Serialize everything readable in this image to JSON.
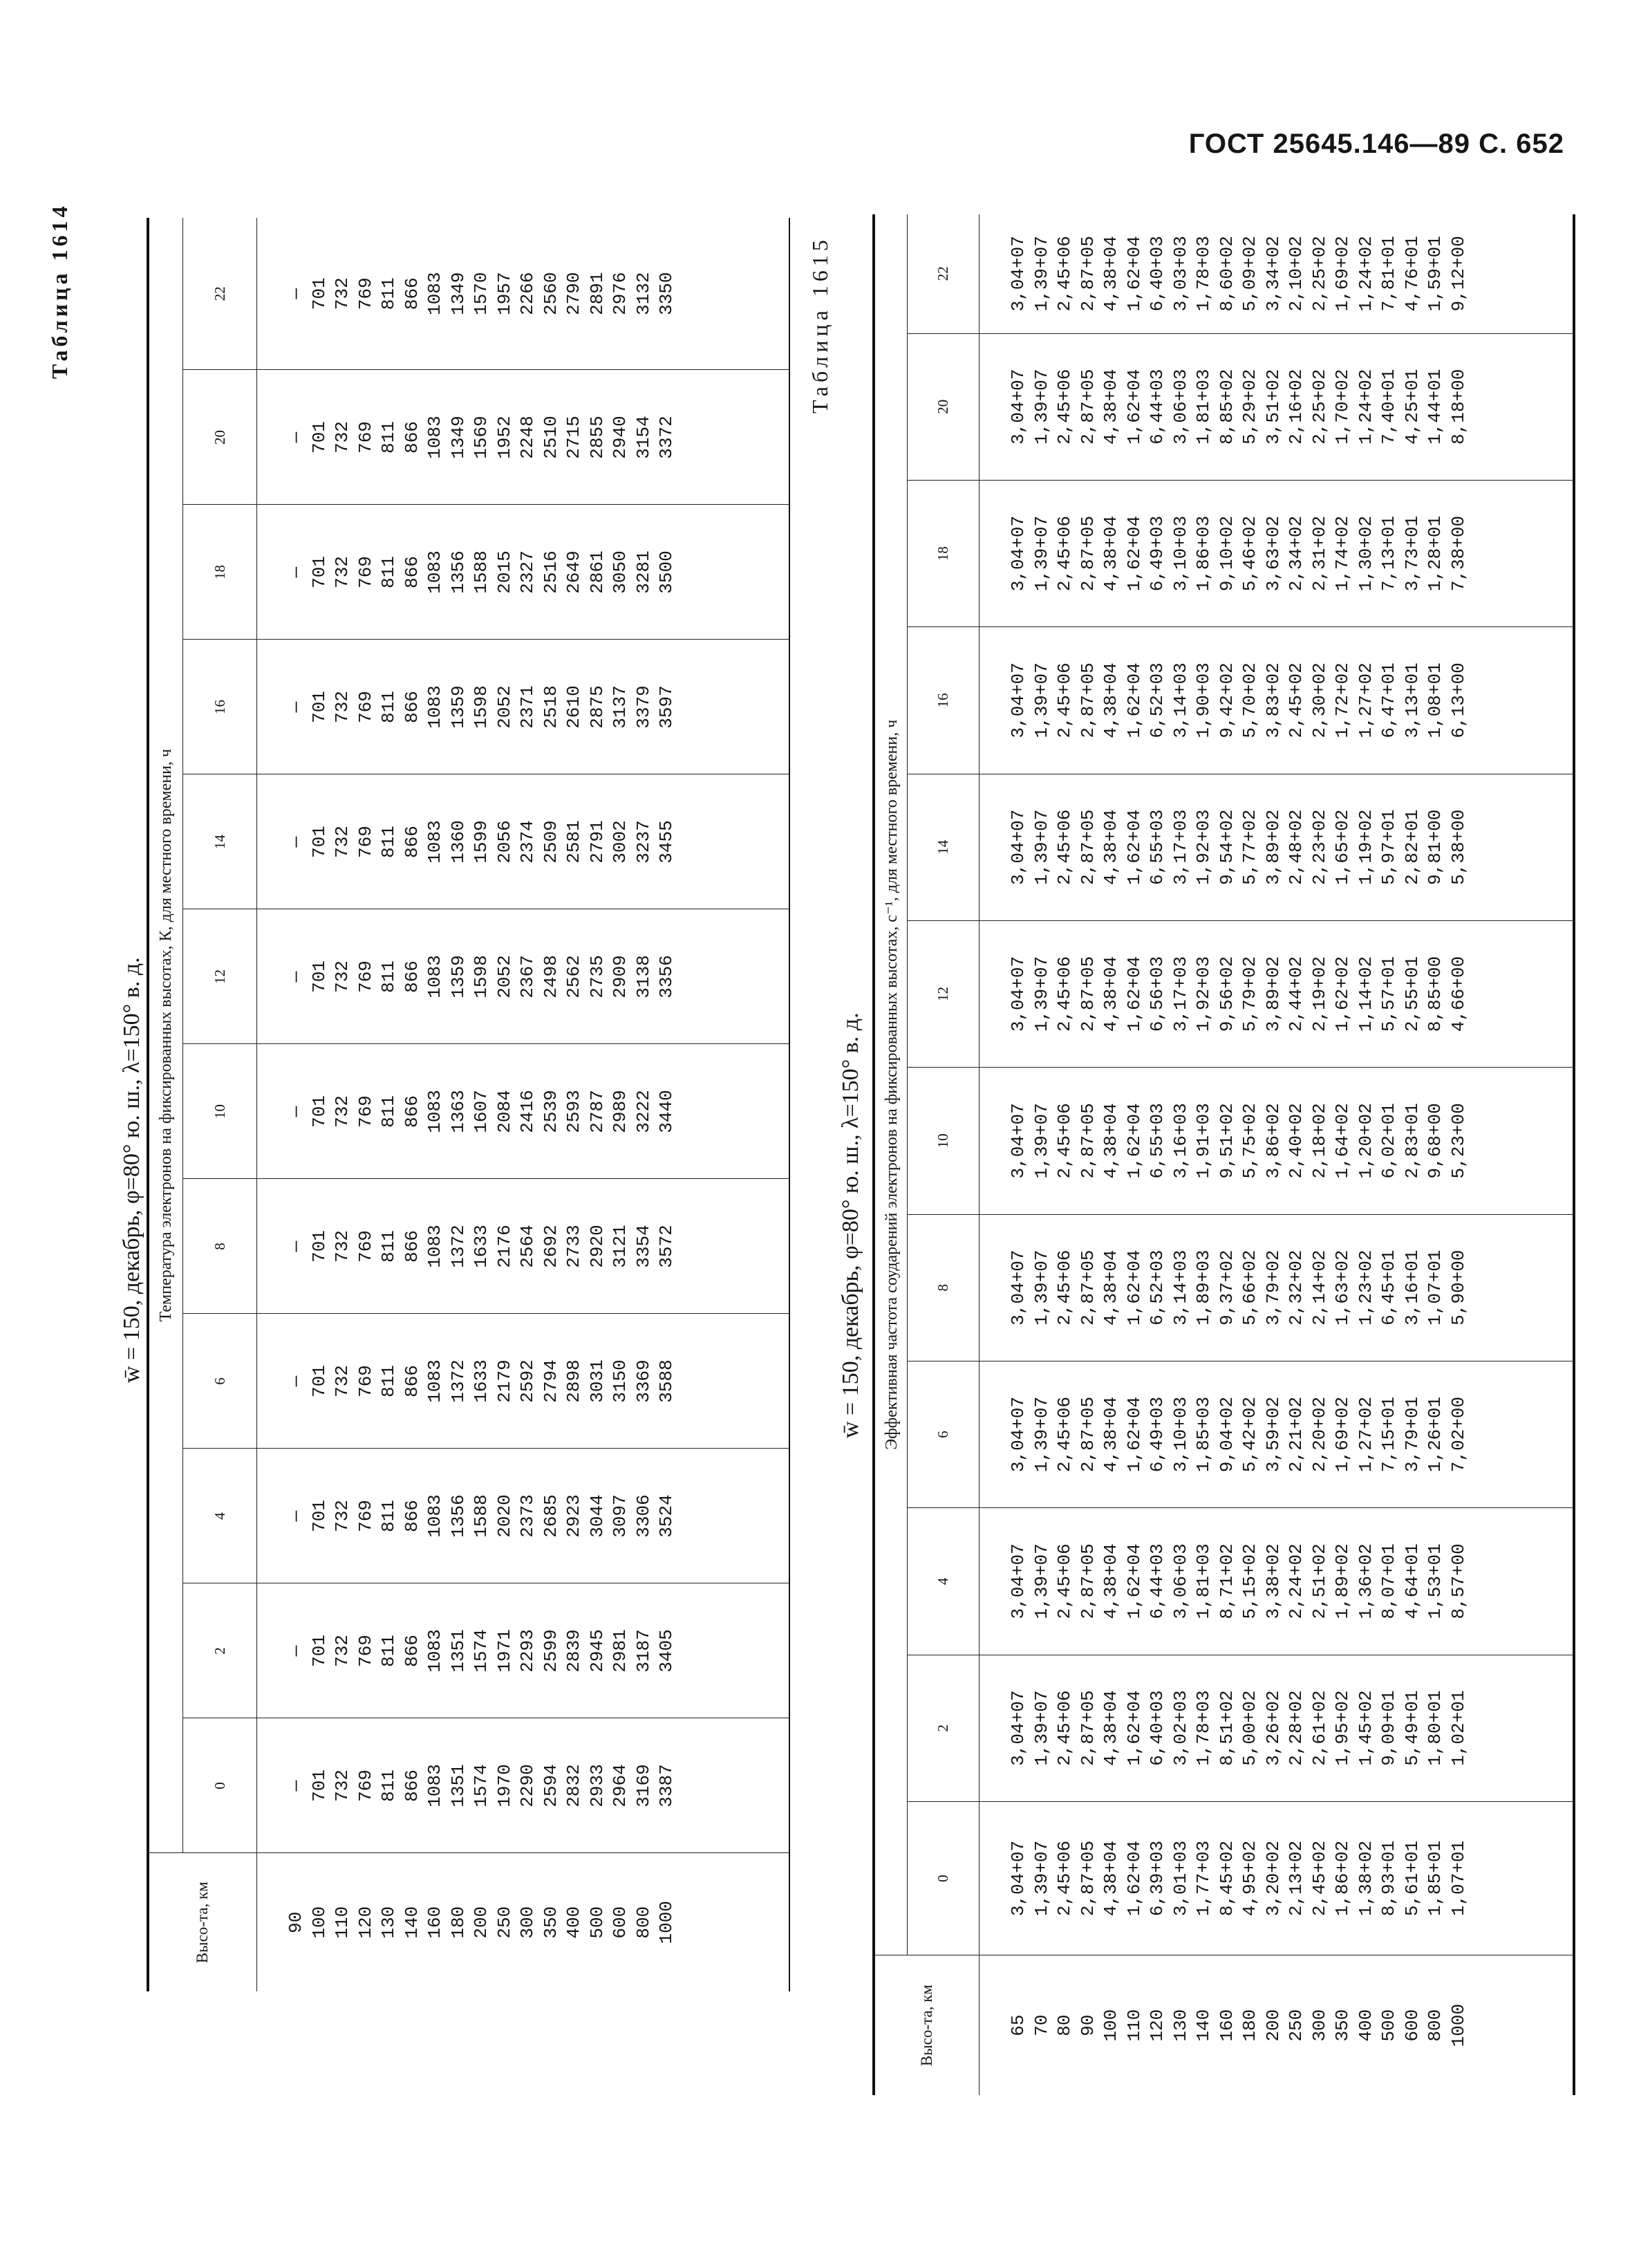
{
  "header": "ГОСТ 25645.146—89 С. 652",
  "table1": {
    "label": "Таблица 1614",
    "caption": "w̄ = 150, декабрь, φ=80° ю. ш., λ=150° в. д.",
    "altitude_header": "Высо-та, км",
    "group_header": "Температура электронов на фиксированных высотах, К, для местного времени, ч",
    "hours": [
      "0",
      "2",
      "4",
      "6",
      "8",
      "10",
      "12",
      "14",
      "16",
      "18",
      "20",
      "22"
    ],
    "altitudes": [
      "90",
      "100",
      "110",
      "120",
      "130",
      "140",
      "160",
      "180",
      "200",
      "250",
      "300",
      "350",
      "400",
      "500",
      "600",
      "800",
      "1000"
    ],
    "columns": [
      [
        "—",
        "701",
        "732",
        "769",
        "811",
        "866",
        "1083",
        "1351",
        "1574",
        "1970",
        "2290",
        "2594",
        "2832",
        "2933",
        "2964",
        "3169",
        "3387"
      ],
      [
        "—",
        "701",
        "732",
        "769",
        "811",
        "866",
        "1083",
        "1351",
        "1574",
        "1971",
        "2293",
        "2599",
        "2839",
        "2945",
        "2981",
        "3187",
        "3405"
      ],
      [
        "—",
        "701",
        "732",
        "769",
        "811",
        "866",
        "1083",
        "1356",
        "1588",
        "2020",
        "2373",
        "2685",
        "2923",
        "3044",
        "3097",
        "3306",
        "3524"
      ],
      [
        "—",
        "701",
        "732",
        "769",
        "811",
        "866",
        "1083",
        "1372",
        "1633",
        "2179",
        "2592",
        "2794",
        "2898",
        "3031",
        "3150",
        "3369",
        "3588"
      ],
      [
        "—",
        "701",
        "732",
        "769",
        "811",
        "866",
        "1083",
        "1372",
        "1633",
        "2176",
        "2564",
        "2692",
        "2733",
        "2920",
        "3121",
        "3354",
        "3572"
      ],
      [
        "—",
        "701",
        "732",
        "769",
        "811",
        "866",
        "1083",
        "1363",
        "1607",
        "2084",
        "2416",
        "2539",
        "2593",
        "2787",
        "2989",
        "3222",
        "3440"
      ],
      [
        "—",
        "701",
        "732",
        "769",
        "811",
        "866",
        "1083",
        "1359",
        "1598",
        "2052",
        "2367",
        "2498",
        "2562",
        "2735",
        "2909",
        "3138",
        "3356"
      ],
      [
        "—",
        "701",
        "732",
        "769",
        "811",
        "866",
        "1083",
        "1360",
        "1599",
        "2056",
        "2374",
        "2509",
        "2581",
        "2791",
        "3002",
        "3237",
        "3455"
      ],
      [
        "—",
        "701",
        "732",
        "769",
        "811",
        "866",
        "1083",
        "1359",
        "1598",
        "2052",
        "2371",
        "2518",
        "2610",
        "2875",
        "3137",
        "3379",
        "3597"
      ],
      [
        "—",
        "701",
        "732",
        "769",
        "811",
        "866",
        "1083",
        "1356",
        "1588",
        "2015",
        "2327",
        "2516",
        "2649",
        "2861",
        "3050",
        "3281",
        "3500"
      ],
      [
        "—",
        "701",
        "732",
        "769",
        "811",
        "866",
        "1083",
        "1349",
        "1569",
        "1952",
        "2248",
        "2510",
        "2715",
        "2855",
        "2940",
        "3154",
        "3372"
      ],
      [
        "—",
        "701",
        "732",
        "769",
        "811",
        "866",
        "1083",
        "1349",
        "1570",
        "1957",
        "2266",
        "2560",
        "2790",
        "2891",
        "2976",
        "3132",
        "3350"
      ]
    ]
  },
  "table2": {
    "label": "Таблица 1615",
    "caption": "w̄ = 150, декабрь, φ=80° ю. ш., λ=150° в. д.",
    "altitude_header": "Высо-та, км",
    "group_header": "Эффективная частота соударений электронов на фиксированных высотах, с⁻¹, для местного времени, ч",
    "hours": [
      "0",
      "2",
      "4",
      "6",
      "8",
      "10",
      "12",
      "14",
      "16",
      "18",
      "20",
      "22"
    ],
    "altitudes": [
      "65",
      "70",
      "80",
      "90",
      "100",
      "110",
      "120",
      "130",
      "140",
      "160",
      "180",
      "200",
      "250",
      "300",
      "350",
      "400",
      "500",
      "600",
      "800",
      "1000"
    ],
    "columns": [
      [
        "3,04+07",
        "1,39+07",
        "2,45+06",
        "2,87+05",
        "4,38+04",
        "1,62+04",
        "6,39+03",
        "3,01+03",
        "1,77+03",
        "8,45+02",
        "4,95+02",
        "3,20+02",
        "2,13+02",
        "2,45+02",
        "1,86+02",
        "1,38+02",
        "8,93+01",
        "5,61+01",
        "1,85+01",
        "1,07+01"
      ],
      [
        "3,04+07",
        "1,39+07",
        "2,45+06",
        "2,87+05",
        "4,38+04",
        "1,62+04",
        "6,40+03",
        "3,02+03",
        "1,78+03",
        "8,51+02",
        "5,00+02",
        "3,26+02",
        "2,28+02",
        "2,61+02",
        "1,95+02",
        "1,45+02",
        "9,09+01",
        "5,49+01",
        "1,80+01",
        "1,02+01"
      ],
      [
        "3,04+07",
        "1,39+07",
        "2,45+06",
        "2,87+05",
        "4,38+04",
        "1,62+04",
        "6,44+03",
        "3,06+03",
        "1,81+03",
        "8,71+02",
        "5,15+02",
        "3,38+02",
        "2,24+02",
        "2,51+02",
        "1,89+02",
        "1,36+02",
        "8,07+01",
        "4,64+01",
        "1,53+01",
        "8,57+00"
      ],
      [
        "3,04+07",
        "1,39+07",
        "2,45+06",
        "2,87+05",
        "4,38+04",
        "1,62+04",
        "6,49+03",
        "3,10+03",
        "1,85+03",
        "9,04+02",
        "5,42+02",
        "3,59+02",
        "2,21+02",
        "2,20+02",
        "1,69+02",
        "1,27+02",
        "7,15+01",
        "3,79+01",
        "1,26+01",
        "7,02+00"
      ],
      [
        "3,04+07",
        "1,39+07",
        "2,45+06",
        "2,87+05",
        "4,38+04",
        "1,62+04",
        "6,52+03",
        "3,14+03",
        "1,89+03",
        "9,37+02",
        "5,66+02",
        "3,79+02",
        "2,32+02",
        "2,14+02",
        "1,63+02",
        "1,23+02",
        "6,45+01",
        "3,16+01",
        "1,07+01",
        "5,90+00"
      ],
      [
        "3,04+07",
        "1,39+07",
        "2,45+06",
        "2,87+05",
        "4,38+04",
        "1,62+04",
        "6,55+03",
        "3,16+03",
        "1,91+03",
        "9,51+02",
        "5,75+02",
        "3,86+02",
        "2,40+02",
        "2,18+02",
        "1,64+02",
        "1,20+02",
        "6,02+01",
        "2,83+01",
        "9,68+00",
        "5,23+00"
      ],
      [
        "3,04+07",
        "1,39+07",
        "2,45+06",
        "2,87+05",
        "4,38+04",
        "1,62+04",
        "6,56+03",
        "3,17+03",
        "1,92+03",
        "9,56+02",
        "5,79+02",
        "3,89+02",
        "2,44+02",
        "2,19+02",
        "1,62+02",
        "1,14+02",
        "5,57+01",
        "2,55+01",
        "8,85+00",
        "4,66+00"
      ],
      [
        "3,04+07",
        "1,39+07",
        "2,45+06",
        "2,87+05",
        "4,38+04",
        "1,62+04",
        "6,55+03",
        "3,17+03",
        "1,92+03",
        "9,54+02",
        "5,77+02",
        "3,89+02",
        "2,48+02",
        "2,23+02",
        "1,65+02",
        "1,19+02",
        "5,97+01",
        "2,82+01",
        "9,81+00",
        "5,38+00"
      ],
      [
        "3,04+07",
        "1,39+07",
        "2,45+06",
        "2,87+05",
        "4,38+04",
        "1,62+04",
        "6,52+03",
        "3,14+03",
        "1,90+03",
        "9,42+02",
        "5,70+02",
        "3,83+02",
        "2,45+02",
        "2,30+02",
        "1,72+02",
        "1,27+02",
        "6,47+01",
        "3,13+01",
        "1,08+01",
        "6,13+00"
      ],
      [
        "3,04+07",
        "1,39+07",
        "2,45+06",
        "2,87+05",
        "4,38+04",
        "1,62+04",
        "6,49+03",
        "3,10+03",
        "1,86+03",
        "9,10+02",
        "5,46+02",
        "3,63+02",
        "2,34+02",
        "2,31+02",
        "1,74+02",
        "1,30+02",
        "7,13+01",
        "3,73+01",
        "1,28+01",
        "7,38+00"
      ],
      [
        "3,04+07",
        "1,39+07",
        "2,45+06",
        "2,87+05",
        "4,38+04",
        "1,62+04",
        "6,44+03",
        "3,06+03",
        "1,81+03",
        "8,85+02",
        "5,29+02",
        "3,51+02",
        "2,16+02",
        "2,25+02",
        "1,70+02",
        "1,24+02",
        "7,40+01",
        "4,25+01",
        "1,44+01",
        "8,18+00"
      ],
      [
        "3,04+07",
        "1,39+07",
        "2,45+06",
        "2,87+05",
        "4,38+04",
        "1,62+04",
        "6,40+03",
        "3,03+03",
        "1,78+03",
        "8,60+02",
        "5,09+02",
        "3,34+02",
        "2,10+02",
        "2,25+02",
        "1,69+02",
        "1,24+02",
        "7,81+01",
        "4,76+01",
        "1,59+01",
        "9,12+00"
      ]
    ]
  }
}
